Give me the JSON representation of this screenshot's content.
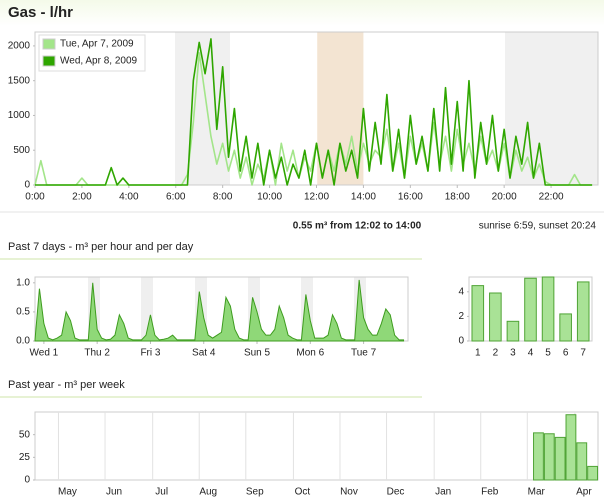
{
  "chart_data": [
    {
      "type": "line",
      "title": "Gas - l/hr",
      "annotations": {
        "selection": "0.55 m³ from 12:02 to 14:00",
        "sun": "sunrise 6:59, sunset 20:24"
      },
      "highlight": [
        12.03,
        14
      ],
      "legend": "top-left",
      "xlim": [
        0,
        24
      ],
      "ylim": [
        0,
        2200
      ],
      "yticks": [
        0,
        500,
        1000,
        1500,
        2000
      ],
      "xticks": [
        {
          "value": 0,
          "label": "0:00"
        },
        {
          "value": 2,
          "label": "2:00"
        },
        {
          "value": 4,
          "label": "4:00"
        },
        {
          "value": 6,
          "label": "6:00"
        },
        {
          "value": 8,
          "label": "8:00"
        },
        {
          "value": 10,
          "label": "10:00"
        },
        {
          "value": 12,
          "label": "12:00"
        },
        {
          "value": 14,
          "label": "14:00"
        },
        {
          "value": 16,
          "label": "16:00"
        },
        {
          "value": 18,
          "label": "18:00"
        },
        {
          "value": 20,
          "label": "20:00"
        },
        {
          "value": 22,
          "label": "22:00"
        }
      ],
      "x": [
        0,
        0.25,
        0.5,
        0.75,
        1,
        1.25,
        1.5,
        1.75,
        2,
        2.25,
        2.5,
        2.75,
        3,
        3.25,
        3.5,
        3.75,
        4,
        4.25,
        4.5,
        4.75,
        5,
        5.25,
        5.5,
        5.75,
        6,
        6.25,
        6.5,
        6.75,
        7,
        7.25,
        7.5,
        7.75,
        8,
        8.25,
        8.5,
        8.75,
        9,
        9.25,
        9.5,
        9.75,
        10,
        10.25,
        10.5,
        10.75,
        11,
        11.25,
        11.5,
        11.75,
        12,
        12.25,
        12.5,
        12.75,
        13,
        13.25,
        13.5,
        13.75,
        14,
        14.25,
        14.5,
        14.75,
        15,
        15.25,
        15.5,
        15.75,
        16,
        16.25,
        16.5,
        16.75,
        17,
        17.25,
        17.5,
        17.75,
        18,
        18.25,
        18.5,
        18.75,
        19,
        19.25,
        19.5,
        19.75,
        20,
        20.25,
        20.5,
        20.75,
        21,
        21.25,
        21.5,
        21.75,
        22,
        22.25,
        22.5,
        22.75,
        23,
        23.25,
        23.5,
        23.75
      ],
      "series": [
        {
          "name": "Tue, Apr 7, 2009",
          "color": "#a3e58a",
          "values": [
            0,
            350,
            0,
            0,
            0,
            0,
            0,
            0,
            100,
            0,
            0,
            0,
            0,
            0,
            0,
            0,
            0,
            0,
            0,
            0,
            0,
            0,
            0,
            0,
            0,
            0,
            150,
            900,
            1900,
            1300,
            700,
            300,
            600,
            200,
            500,
            100,
            400,
            0,
            300,
            100,
            500,
            0,
            600,
            200,
            500,
            100,
            400,
            200,
            600,
            100,
            500,
            200,
            600,
            300,
            700,
            200,
            600,
            300,
            500,
            400,
            800,
            200,
            600,
            100,
            700,
            300,
            600,
            200,
            900,
            300,
            700,
            200,
            800,
            300,
            600,
            200,
            700,
            300,
            500,
            200,
            600,
            100,
            500,
            200,
            400,
            100,
            300,
            50,
            0,
            0,
            0,
            0,
            150,
            0,
            0,
            0
          ]
        },
        {
          "name": "Wed, Apr 8, 2009",
          "color": "#2fa600",
          "values": [
            0,
            0,
            0,
            0,
            0,
            0,
            0,
            0,
            0,
            0,
            0,
            0,
            0,
            250,
            0,
            100,
            0,
            0,
            0,
            0,
            0,
            0,
            0,
            0,
            0,
            0,
            0,
            1500,
            2050,
            1600,
            2100,
            800,
            1700,
            400,
            1100,
            200,
            700,
            100,
            600,
            0,
            500,
            100,
            400,
            0,
            300,
            100,
            500,
            0,
            600,
            100,
            500,
            0,
            600,
            200,
            500,
            100,
            1100,
            200,
            900,
            300,
            1300,
            200,
            800,
            100,
            1000,
            300,
            700,
            200,
            1100,
            200,
            1400,
            300,
            1200,
            200,
            1500,
            100,
            900,
            300,
            1000,
            200,
            800,
            100,
            700,
            300,
            900,
            100,
            600,
            0,
            0,
            0,
            0,
            0,
            0,
            0,
            0,
            0
          ]
        }
      ]
    },
    {
      "type": "area",
      "title": "Past 7 days - m³ per hour and per day",
      "xlim": [
        0,
        168
      ],
      "ylim": [
        0,
        1.1
      ],
      "yticks": [
        {
          "value": 0,
          "label": "0.0"
        },
        {
          "value": 0.5,
          "label": "0.5"
        },
        {
          "value": 1,
          "label": "1.0"
        }
      ],
      "xticks": [
        {
          "value": 4,
          "label": "Wed 1"
        },
        {
          "value": 28,
          "label": "Thu 2"
        },
        {
          "value": 52,
          "label": "Fri 3"
        },
        {
          "value": 76,
          "label": "Sat 4"
        },
        {
          "value": 100,
          "label": "Sun 5"
        },
        {
          "value": 124,
          "label": "Mon 6"
        },
        {
          "value": 148,
          "label": "Tue 7"
        }
      ],
      "x": [
        0,
        2,
        4,
        6,
        8,
        10,
        12,
        14,
        16,
        18,
        20,
        22,
        24,
        26,
        28,
        30,
        32,
        34,
        36,
        38,
        40,
        42,
        44,
        46,
        48,
        50,
        52,
        54,
        56,
        58,
        60,
        62,
        64,
        66,
        68,
        70,
        72,
        74,
        76,
        78,
        80,
        82,
        84,
        86,
        88,
        90,
        92,
        94,
        96,
        98,
        100,
        102,
        104,
        106,
        108,
        110,
        112,
        114,
        116,
        118,
        120,
        122,
        124,
        126,
        128,
        130,
        132,
        134,
        136,
        138,
        140,
        142,
        144,
        146,
        148,
        150,
        152,
        154,
        156,
        158,
        160,
        162,
        164,
        166
      ],
      "series": [
        {
          "color": "#8fd878",
          "values": [
            0.02,
            0.9,
            0.3,
            0.05,
            0.02,
            0.05,
            0.1,
            0.5,
            0.35,
            0.05,
            0.02,
            0.02,
            0.02,
            1.0,
            0.2,
            0.05,
            0.02,
            0.03,
            0.1,
            0.45,
            0.3,
            0.05,
            0.02,
            0.02,
            0.02,
            0.1,
            0.45,
            0.1,
            0.02,
            0.03,
            0.05,
            0.1,
            0.02,
            0.02,
            0.02,
            0.02,
            0.02,
            0.85,
            0.4,
            0.1,
            0.05,
            0.1,
            0.15,
            0.75,
            0.6,
            0.2,
            0.05,
            0.02,
            0.02,
            0.75,
            0.5,
            0.2,
            0.1,
            0.1,
            0.2,
            0.6,
            0.4,
            0.1,
            0.05,
            0.02,
            0.02,
            0.8,
            0.35,
            0.05,
            0.05,
            0.05,
            0.1,
            0.45,
            0.3,
            0.05,
            0.02,
            0.02,
            0.02,
            1.05,
            0.4,
            0.2,
            0.1,
            0.1,
            0.3,
            0.55,
            0.45,
            0.1,
            0.02,
            0.02
          ]
        }
      ]
    },
    {
      "type": "bar",
      "ylim": [
        0,
        5.2
      ],
      "yticks": [
        0,
        2,
        4
      ],
      "categories": [
        "1",
        "2",
        "3",
        "4",
        "5",
        "6",
        "7"
      ],
      "color": "#a9e296",
      "values": [
        4.5,
        3.9,
        1.6,
        5.1,
        5.2,
        2.2,
        4.8
      ]
    },
    {
      "type": "bar",
      "title": "Past year - m³ per week",
      "grid": "x",
      "xlim": [
        0,
        52
      ],
      "ylim": [
        0,
        75
      ],
      "yticks": [
        0,
        25,
        50
      ],
      "xticks": [
        {
          "value": 3,
          "label": "May"
        },
        {
          "value": 7.3,
          "label": "Jun"
        },
        {
          "value": 11.7,
          "label": "Jul"
        },
        {
          "value": 16,
          "label": "Aug"
        },
        {
          "value": 20.3,
          "label": "Sep"
        },
        {
          "value": 24.7,
          "label": "Oct"
        },
        {
          "value": 29,
          "label": "Nov"
        },
        {
          "value": 33.3,
          "label": "Dec"
        },
        {
          "value": 37.7,
          "label": "Jan"
        },
        {
          "value": 42,
          "label": "Feb"
        },
        {
          "value": 46.3,
          "label": "Mar"
        },
        {
          "value": 50.7,
          "label": "Apr"
        }
      ],
      "color": "#a9e296",
      "x": [
        46,
        47,
        48,
        49,
        50,
        51
      ],
      "values": [
        52,
        51,
        47,
        72,
        41,
        15
      ]
    }
  ]
}
